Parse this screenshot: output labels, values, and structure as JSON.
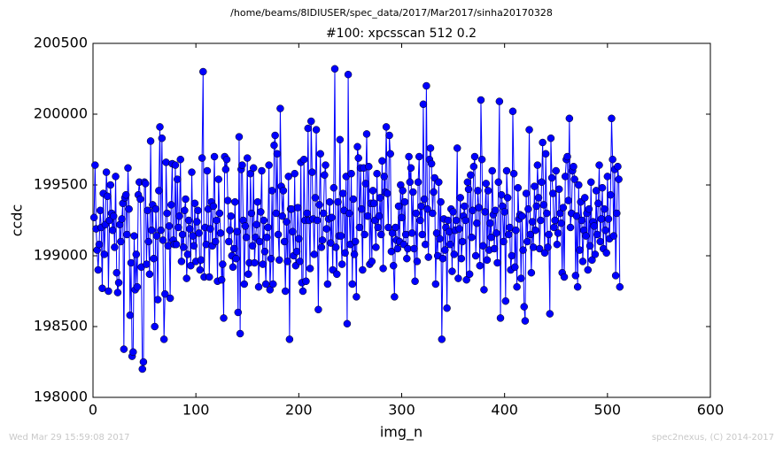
{
  "footer_left": "Wed Mar 29 15:59:08 2017",
  "footer_right": "spec2nexus, (C) 2014-2017",
  "chart_data": {
    "type": "line",
    "suptitle": "/home/beams/8IDIUSER/spec_data/2017/Mar2017/sinha20170328",
    "title": "#100: xpcsscan 512 0.2",
    "xlabel": "img_n",
    "ylabel": "ccdc",
    "xlim": [
      0,
      600
    ],
    "xticks": [
      0,
      100,
      200,
      300,
      400,
      500,
      600
    ],
    "ylim": [
      198000,
      200500
    ],
    "yticks": [
      198000,
      198500,
      199000,
      199500,
      200000,
      200500
    ],
    "series": [
      {
        "name": "ccdc",
        "color": "#0000ff",
        "x": [
          1,
          2,
          3,
          4,
          5,
          6,
          7,
          8,
          9,
          10,
          11,
          12,
          13,
          14,
          15,
          16,
          17,
          18,
          19,
          20,
          21,
          22,
          23,
          24,
          25,
          26,
          27,
          28,
          29,
          30,
          31,
          32,
          33,
          34,
          35,
          36,
          37,
          38,
          39,
          40,
          41,
          42,
          43,
          44,
          45,
          46,
          47,
          48,
          49,
          50,
          51,
          52,
          53,
          54,
          55,
          56,
          57,
          58,
          59,
          60,
          61,
          62,
          63,
          64,
          65,
          66,
          67,
          68,
          69,
          70,
          71,
          72,
          73,
          74,
          75,
          76,
          77,
          78,
          79,
          80,
          81,
          82,
          83,
          84,
          85,
          86,
          87,
          88,
          89,
          90,
          91,
          92,
          93,
          94,
          95,
          96,
          97,
          98,
          99,
          100,
          101,
          102,
          103,
          104,
          105,
          106,
          107,
          108,
          109,
          110,
          111,
          112,
          113,
          114,
          115,
          116,
          117,
          118,
          119,
          120,
          121,
          122,
          123,
          124,
          125,
          126,
          127,
          128,
          129,
          130,
          131,
          132,
          133,
          134,
          135,
          136,
          137,
          138,
          139,
          140,
          141,
          142,
          143,
          144,
          145,
          146,
          147,
          148,
          149,
          150,
          151,
          152,
          153,
          154,
          155,
          156,
          157,
          158,
          159,
          160,
          161,
          162,
          163,
          164,
          165,
          166,
          167,
          168,
          169,
          170,
          171,
          172,
          173,
          174,
          175,
          176,
          177,
          178,
          179,
          180,
          181,
          182,
          183,
          184,
          185,
          186,
          187,
          188,
          189,
          190,
          191,
          192,
          193,
          194,
          195,
          196,
          197,
          198,
          199,
          200,
          201,
          202,
          203,
          204,
          205,
          206,
          207,
          208,
          209,
          210,
          211,
          212,
          213,
          214,
          215,
          216,
          217,
          218,
          219,
          220,
          221,
          222,
          223,
          224,
          225,
          226,
          227,
          228,
          229,
          230,
          231,
          232,
          233,
          234,
          235,
          236,
          237,
          238,
          239,
          240,
          241,
          242,
          243,
          244,
          245,
          246,
          247,
          248,
          249,
          250,
          251,
          252,
          253,
          254,
          255,
          256,
          257,
          258,
          259,
          260,
          261,
          262,
          263,
          264,
          265,
          266,
          267,
          268,
          269,
          270,
          271,
          272,
          273,
          274,
          275,
          276,
          277,
          278,
          279,
          280,
          281,
          282,
          283,
          284,
          285,
          286,
          287,
          288,
          289,
          290,
          291,
          292,
          293,
          294,
          295,
          296,
          297,
          298,
          299,
          300,
          301,
          302,
          303,
          304,
          305,
          306,
          307,
          308,
          309,
          310,
          311,
          312,
          313,
          314,
          315,
          316,
          317,
          318,
          319,
          320,
          321,
          322,
          323,
          324,
          325,
          326,
          327,
          328,
          329,
          330,
          331,
          332,
          333,
          334,
          335,
          336,
          337,
          338,
          339,
          340,
          341,
          342,
          343,
          344,
          345,
          346,
          347,
          348,
          349,
          350,
          351,
          352,
          353,
          354,
          355,
          356,
          357,
          358,
          359,
          360,
          361,
          362,
          363,
          364,
          365,
          366,
          367,
          368,
          369,
          370,
          371,
          372,
          373,
          374,
          375,
          376,
          377,
          378,
          379,
          380,
          381,
          382,
          383,
          384,
          385,
          386,
          387,
          388,
          389,
          390,
          391,
          392,
          393,
          394,
          395,
          396,
          397,
          398,
          399,
          400,
          401,
          402,
          403,
          404,
          405,
          406,
          407,
          408,
          409,
          410,
          411,
          412,
          413,
          414,
          415,
          416,
          417,
          418,
          419,
          420,
          421,
          422,
          423,
          424,
          425,
          426,
          427,
          428,
          429,
          430,
          431,
          432,
          433,
          434,
          435,
          436,
          437,
          438,
          439,
          440,
          441,
          442,
          443,
          444,
          445,
          446,
          447,
          448,
          449,
          450,
          451,
          452,
          453,
          454,
          455,
          456,
          457,
          458,
          459,
          460,
          461,
          462,
          463,
          464,
          465,
          466,
          467,
          468,
          469,
          470,
          471,
          472,
          473,
          474,
          475,
          476,
          477,
          478,
          479,
          480,
          481,
          482,
          483,
          484,
          485,
          486,
          487,
          488,
          489,
          490,
          491,
          492,
          493,
          494,
          495,
          496,
          497,
          498,
          499,
          500,
          501,
          502,
          503,
          504,
          505,
          506,
          507,
          508,
          509,
          510,
          511,
          512
        ],
        "values": [
          199270,
          199640,
          199190,
          199040,
          198900,
          199080,
          199320,
          199200,
          198770,
          199440,
          199010,
          199220,
          199590,
          199420,
          198750,
          199250,
          199500,
          199300,
          199180,
          199280,
          199060,
          199560,
          198880,
          198740,
          198810,
          199220,
          199100,
          199260,
          199370,
          198340,
          199410,
          199430,
          199150,
          199620,
          199330,
          198580,
          198950,
          198290,
          198320,
          199140,
          198760,
          199010,
          198780,
          199430,
          199520,
          199400,
          198920,
          198200,
          198250,
          199520,
          199510,
          198940,
          199320,
          199100,
          198870,
          199810,
          199180,
          199360,
          198980,
          198500,
          199330,
          199140,
          198690,
          199460,
          199910,
          199180,
          199830,
          199110,
          198410,
          198730,
          199660,
          199300,
          199070,
          199210,
          198700,
          199360,
          199650,
          199110,
          199080,
          199640,
          199080,
          199540,
          199200,
          199280,
          199680,
          198960,
          199150,
          199060,
          199320,
          199400,
          198840,
          199010,
          199250,
          199190,
          198930,
          199590,
          199140,
          199070,
          199370,
          198960,
          199240,
          199320,
          199160,
          198900,
          198970,
          199690,
          200300,
          198850,
          199200,
          199080,
          199600,
          199330,
          198850,
          199190,
          199380,
          199070,
          199350,
          199700,
          199100,
          199250,
          198820,
          199540,
          199300,
          199160,
          198830,
          198940,
          198560,
          199700,
          199610,
          199680,
          199390,
          199100,
          199180,
          199280,
          199000,
          198920,
          199050,
          199380,
          198980,
          199170,
          198600,
          199840,
          198450,
          199610,
          199640,
          199250,
          198800,
          199210,
          199130,
          199690,
          198870,
          198950,
          199580,
          199300,
          199070,
          199620,
          198950,
          199130,
          199220,
          199380,
          198780,
          199100,
          199310,
          199600,
          198940,
          199250,
          199030,
          198800,
          199130,
          199200,
          199640,
          198760,
          198980,
          199460,
          198800,
          199780,
          199850,
          199300,
          199720,
          199150,
          198970,
          200040,
          199490,
          199280,
          199460,
          199100,
          198750,
          199240,
          198960,
          199560,
          198410,
          199330,
          199330,
          199170,
          199000,
          199580,
          198930,
          199030,
          199340,
          199120,
          198960,
          199660,
          198810,
          198750,
          199680,
          199250,
          198820,
          199300,
          199900,
          199250,
          198910,
          199950,
          199590,
          199260,
          199010,
          199410,
          199890,
          199250,
          198620,
          199360,
          199720,
          199060,
          199110,
          199300,
          199570,
          199640,
          199190,
          198800,
          199260,
          199380,
          199090,
          199270,
          198900,
          199480,
          200320,
          199060,
          198870,
          199380,
          199140,
          199820,
          199140,
          198940,
          199440,
          199320,
          199020,
          199560,
          198520,
          200280,
          199300,
          199080,
          199580,
          198800,
          199400,
          199010,
          199100,
          198710,
          199770,
          199690,
          199200,
          199620,
          199330,
          198900,
          199620,
          199150,
          199510,
          199860,
          199280,
          199630,
          198940,
          199370,
          198960,
          199460,
          199370,
          199250,
          199060,
          199580,
          199200,
          199280,
          199410,
          199150,
          199670,
          198910,
          199560,
          199450,
          199910,
          199440,
          199200,
          199850,
          199720,
          199030,
          199160,
          198930,
          198710,
          199200,
          199110,
          199050,
          199350,
          199100,
          199500,
          199270,
          199460,
          199080,
          199380,
          199150,
          198980,
          199050,
          199700,
          199520,
          199620,
          199160,
          199450,
          199050,
          198820,
          199300,
          198960,
          199520,
          199700,
          199250,
          199350,
          199150,
          200070,
          199400,
          199080,
          200200,
          199330,
          198990,
          199680,
          199760,
          199650,
          199300,
          199450,
          199550,
          198800,
          199160,
          199000,
          199520,
          199120,
          199380,
          198410,
          198980,
          199260,
          199040,
          199200,
          198630,
          199250,
          199170,
          199080,
          199330,
          198890,
          199310,
          199010,
          199180,
          199250,
          199760,
          198840,
          199190,
          199410,
          198980,
          199100,
          199280,
          199350,
          199250,
          198830,
          199520,
          199470,
          198870,
          199570,
          199130,
          199320,
          199630,
          199700,
          199000,
          199230,
          199460,
          199340,
          198930,
          200100,
          199680,
          199070,
          198760,
          199310,
          199510,
          198970,
          199460,
          199040,
          199230,
          199130,
          199600,
          199290,
          199050,
          199320,
          199160,
          198950,
          199520,
          200090,
          198560,
          199430,
          199350,
          199100,
          199310,
          198680,
          199600,
          199410,
          199150,
          199200,
          198900,
          199000,
          200020,
          199580,
          198920,
          199180,
          198780,
          199480,
          199260,
          199290,
          198840,
          199280,
          199040,
          198640,
          198540,
          199440,
          199100,
          199330,
          199890,
          199150,
          198880,
          199240,
          199060,
          199490,
          199180,
          199350,
          199640,
          199410,
          199050,
          199250,
          199520,
          199800,
          199360,
          199020,
          199720,
          199300,
          199060,
          199150,
          198590,
          199830,
          199550,
          199440,
          199200,
          199250,
          199600,
          199080,
          199160,
          199470,
          199300,
          199230,
          198880,
          199340,
          198850,
          199560,
          199680,
          199700,
          199390,
          199970,
          199200,
          199300,
          199600,
          199630,
          199540,
          198860,
          199280,
          198780,
          199500,
          199040,
          199380,
          199250,
          198960,
          199180,
          199410,
          199140,
          199300,
          198900,
          199330,
          199070,
          199520,
          198970,
          199240,
          199210,
          199010,
          199460,
          199150,
          199370,
          199640,
          199100,
          199260,
          199480,
          199050,
          199330,
          199180,
          199020,
          199560,
          199260,
          199120,
          199430,
          199970,
          199680,
          199140,
          199610,
          198860,
          199300,
          199630,
          199540,
          198780
        ]
      }
    ]
  }
}
